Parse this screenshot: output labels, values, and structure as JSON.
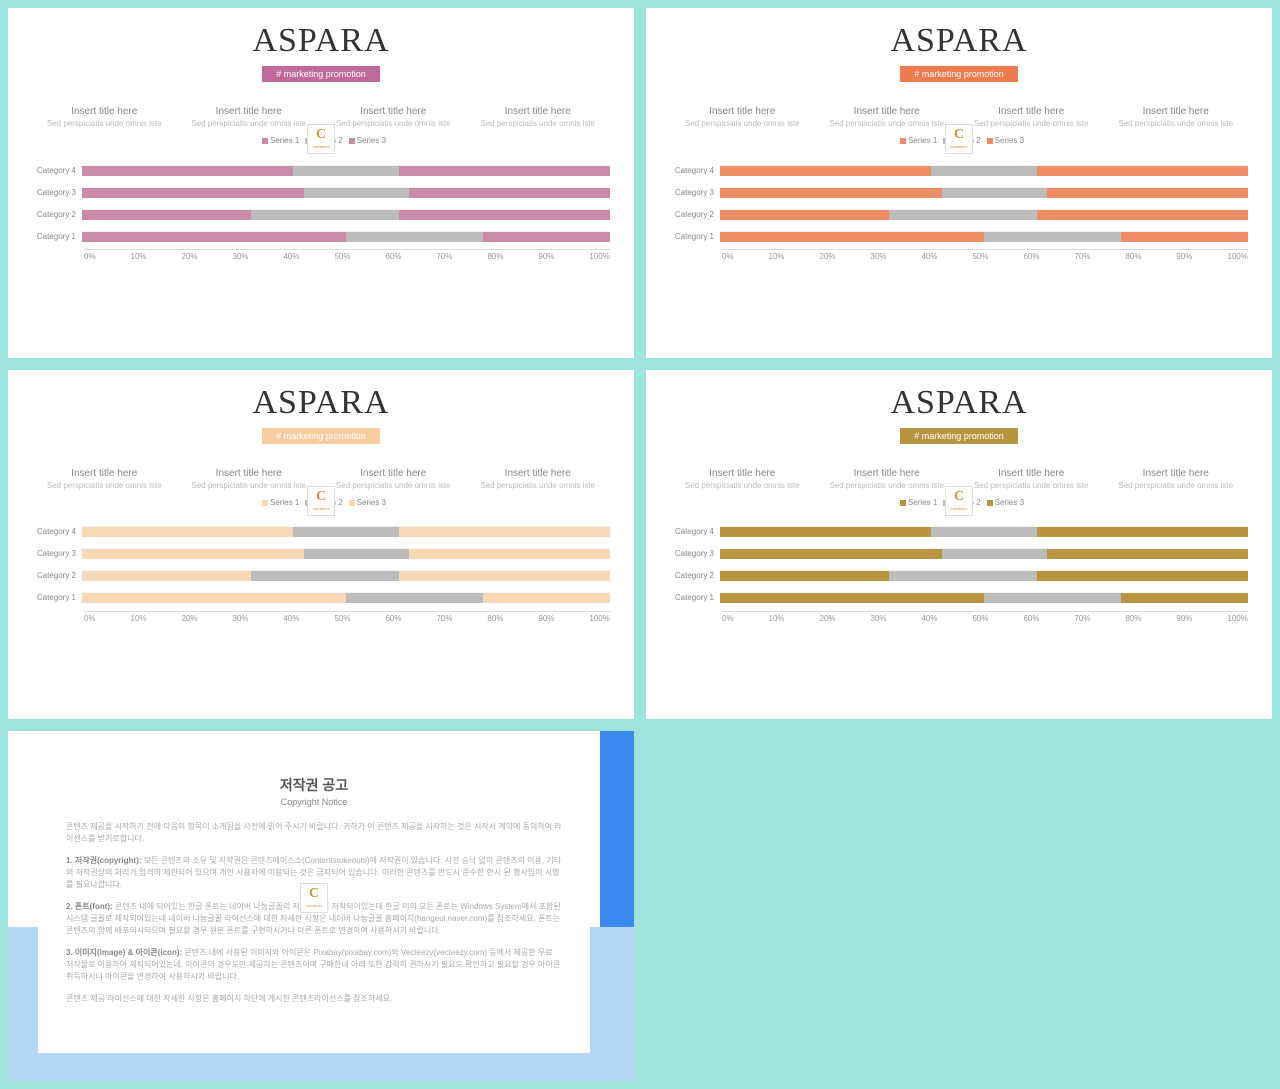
{
  "title": "ASPARA",
  "subtitle": "# marketing promotion",
  "col_title": "Insert title here",
  "col_sub": "Sed perspiciatis unde omnis iste",
  "series": [
    "Series 1",
    "Series 2",
    "Series 3"
  ],
  "categories": [
    "Category 4",
    "Category 3",
    "Category 2",
    "Category 1"
  ],
  "xticks": [
    "0%",
    "10%",
    "20%",
    "30%",
    "40%",
    "50%",
    "60%",
    "70%",
    "80%",
    "90%",
    "100%"
  ],
  "grey": "#bcbcbc",
  "variants": [
    {
      "accent": "#c98ba8",
      "badge_bg": "#c16a9a"
    },
    {
      "accent": "#f08d69",
      "badge_bg": "#f07a4f"
    },
    {
      "accent": "#f7d9b8",
      "badge_bg": "#f7cda0"
    },
    {
      "accent": "#b8953f",
      "badge_bg": "#b8953f"
    }
  ],
  "rows": [
    {
      "s1": 40,
      "s2": 20,
      "s3": 40
    },
    {
      "s1": 42,
      "s2": 20,
      "s3": 38
    },
    {
      "s1": 32,
      "s2": 28,
      "s3": 40
    },
    {
      "s1": 50,
      "s2": 26,
      "s3": 24
    }
  ],
  "copyright": {
    "title_kr": "저작권 공고",
    "title_en": "Copyright Notice",
    "p1": "콘텐츠 제공을 시작하기 전에 다음의 항목이 소개됨을 사전에 읽어 주시기 바랍니다. 귀하가 이 콘텐츠 제공을 시작하는 것은 시작서 계약에 동의하여 라이센스를 받기로합니다.",
    "p2": "<b>1. 저작권(copyright):</b> 모든 콘텐츠의 소유 및 저작권은 콘텐츠에이스소(Contentstokeouts)에 저작권이 있습니다. 사전 승낙 없이 콘텐츠의 이용, 기타의 저작권상의 처리가 엄격히 제한되어 있으며 개인 사용자에 이용되는 것은 금지되어 있습니다. 이러한 콘텐츠를 반드시 준수한 한시 된 행사임이 시행를 필요나합니다.",
    "p3": "<b>2. 폰트(font):</b> 콘텐츠 내에 되어있는 한글 폰트는 네이버 나눔글꼴의 저작권이어 저작되어있는데 한글 이외 모든 폰트는 Windows System에서 포함된 시스템 글꼴로 제작되어있는네 네이버 나눔글꼴 라이선스에 대한 자세한 사항은 네이버 나눔글꼴 홈페이지(hangeul.naver.com)를 참조하세요. 폰트는 콘텐츠의 함께 배포되시되으며 필요할 경우 원본 폰트를 구현하시거나 다른 폰트로 변경하여 사용하시기 바랍니다.",
    "p4": "<b>3. 이미지(image) & 아이콘(icon):</b> 콘텐츠 내에 사용된 이미지와 아이콘은 Pixabay(pixabay.com)와 Vecteezy(vecteezy.com) 등에서 제공한 무료 저작물로 이용하여 제작되어있는네. 아이콘의 경우도만 제공하는 콘텐츠이며 구매한네 아래 또한 강력히 권하시기 필요도 확인하고 필요할 경우 아이콘 취득하시니 아이콘을 변경하여 사용하시기 바랍니다.",
    "p5": "콘텐츠 제공 라이선스에 대한 자세한 사항은 홈페이지 하단에 게시한 콘텐츠라이선스를 참조하세요."
  }
}
